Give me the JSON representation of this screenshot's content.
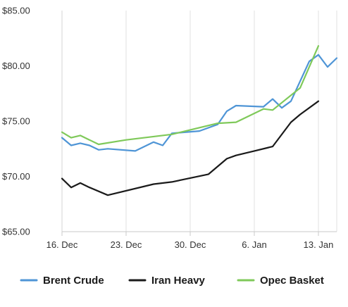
{
  "chart_data": {
    "type": "line",
    "title": "",
    "xlabel": "",
    "ylabel": "",
    "ylim": [
      65,
      85
    ],
    "y_ticks": [
      65,
      70,
      75,
      80,
      85
    ],
    "y_tick_labels": [
      "$65.00",
      "$70.00",
      "$75.00",
      "$80.00",
      "$85.00"
    ],
    "x_range": [
      "2021-12-16",
      "2022-01-15"
    ],
    "x_ticks": [
      "2021-12-16",
      "2021-12-23",
      "2021-12-30",
      "2022-01-06",
      "2022-01-13"
    ],
    "x_tick_labels": [
      "16. Dec",
      "23. Dec",
      "30. Dec",
      "6. Jan",
      "13. Jan"
    ],
    "grid": "vertical",
    "legend_position": "bottom",
    "series": [
      {
        "name": "Brent Crude",
        "color": "#4f95d6",
        "x": [
          "2021-12-16",
          "2021-12-17",
          "2021-12-18",
          "2021-12-19",
          "2021-12-20",
          "2021-12-21",
          "2021-12-24",
          "2021-12-26",
          "2021-12-27",
          "2021-12-28",
          "2021-12-31",
          "2022-01-02",
          "2022-01-03",
          "2022-01-04",
          "2022-01-07",
          "2022-01-08",
          "2022-01-09",
          "2022-01-10",
          "2022-01-12",
          "2022-01-13",
          "2022-01-14",
          "2022-01-15"
        ],
        "y": [
          73.5,
          72.8,
          73.0,
          72.8,
          72.4,
          72.5,
          72.3,
          73.1,
          72.8,
          73.9,
          74.1,
          74.7,
          75.9,
          76.4,
          76.3,
          77.0,
          76.2,
          76.8,
          80.4,
          81.0,
          79.9,
          80.7
        ]
      },
      {
        "name": "Iran Heavy",
        "color": "#1a1a1a",
        "x": [
          "2021-12-16",
          "2021-12-17",
          "2021-12-18",
          "2021-12-19",
          "2021-12-21",
          "2021-12-26",
          "2021-12-28",
          "2022-01-01",
          "2022-01-03",
          "2022-01-04",
          "2022-01-06",
          "2022-01-08",
          "2022-01-10",
          "2022-01-11",
          "2022-01-13"
        ],
        "y": [
          69.8,
          69.0,
          69.4,
          69.0,
          68.3,
          69.3,
          69.5,
          70.2,
          71.6,
          71.9,
          72.3,
          72.7,
          74.9,
          75.6,
          76.8
        ]
      },
      {
        "name": "Opec Basket",
        "color": "#7fc95a",
        "x": [
          "2021-12-16",
          "2021-12-17",
          "2021-12-18",
          "2021-12-19",
          "2021-12-20",
          "2021-12-23",
          "2021-12-28",
          "2022-01-02",
          "2022-01-04",
          "2022-01-07",
          "2022-01-08",
          "2022-01-11",
          "2022-01-13"
        ],
        "y": [
          74.0,
          73.5,
          73.7,
          73.3,
          72.9,
          73.3,
          73.8,
          74.8,
          74.9,
          76.1,
          76.0,
          78.0,
          81.8
        ]
      }
    ]
  }
}
